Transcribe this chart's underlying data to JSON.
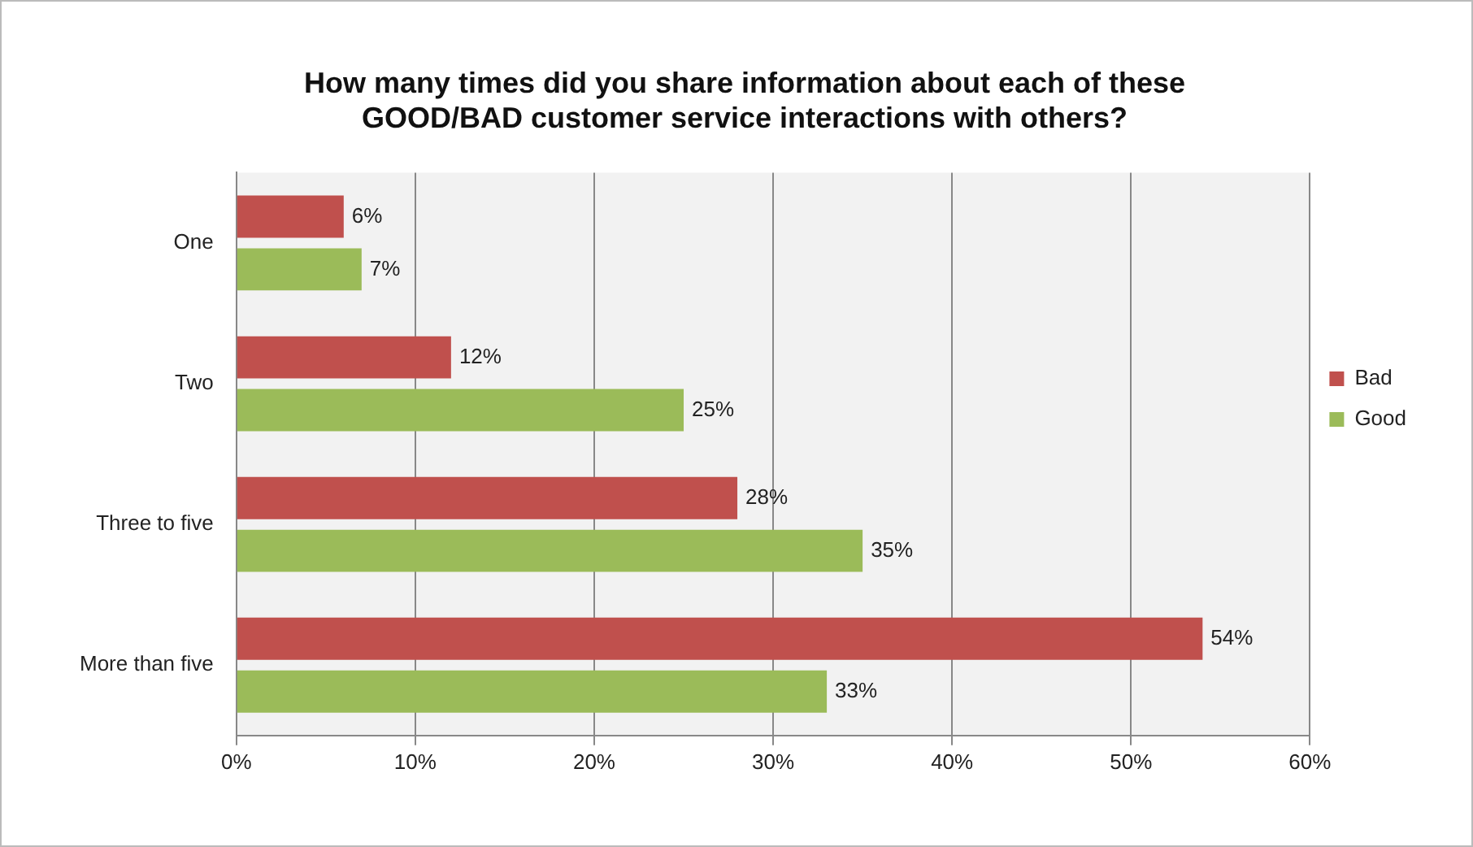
{
  "chart_data": {
    "type": "bar",
    "orientation": "horizontal",
    "title": "How many times did you share information about each of these GOOD/BAD customer service interactions with others?",
    "categories": [
      "One",
      "Two",
      "Three to five",
      "More than five"
    ],
    "series": [
      {
        "name": "Bad",
        "color": "#c0504d",
        "values": [
          6,
          12,
          28,
          54
        ],
        "value_labels": [
          "6%",
          "12%",
          "28%",
          "54%"
        ]
      },
      {
        "name": "Good",
        "color": "#9bbb59",
        "values": [
          7,
          25,
          35,
          33
        ],
        "value_labels": [
          "7%",
          "25%",
          "35%",
          "33%"
        ]
      }
    ],
    "xlim": [
      0,
      60
    ],
    "xticks": [
      {
        "value": 0,
        "label": "0%"
      },
      {
        "value": 10,
        "label": "10%"
      },
      {
        "value": 20,
        "label": "20%"
      },
      {
        "value": 30,
        "label": "30%"
      },
      {
        "value": 40,
        "label": "40%"
      },
      {
        "value": 50,
        "label": "50%"
      },
      {
        "value": 60,
        "label": "60%"
      }
    ],
    "grid": "x",
    "legend": "right"
  }
}
